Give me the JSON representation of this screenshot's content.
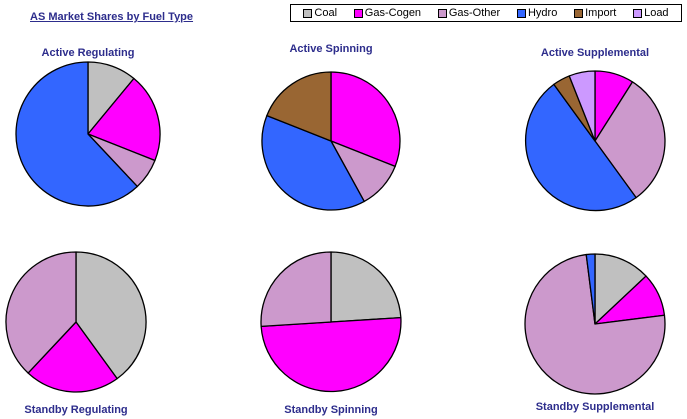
{
  "page": {
    "title": "AS Market Shares by Fuel Type"
  },
  "colors": {
    "Coal": "#c0c0c0",
    "Gas-Cogen": "#ff00ff",
    "Gas-Other": "#cc99cc",
    "Hydro": "#3366ff",
    "Import": "#996633",
    "Load": "#cc99ff"
  },
  "legend": [
    {
      "label": "Coal",
      "color": "#c0c0c0"
    },
    {
      "label": "Gas-Cogen",
      "color": "#ff00ff"
    },
    {
      "label": "Gas-Other",
      "color": "#cc99cc"
    },
    {
      "label": "Hydro",
      "color": "#3366ff"
    },
    {
      "label": "Import",
      "color": "#996633"
    },
    {
      "label": "Load",
      "color": "#cc99ff"
    }
  ],
  "chart_data": [
    {
      "type": "pie",
      "title": "Active Regulating",
      "slices": [
        {
          "label": "Coal",
          "value": 11
        },
        {
          "label": "Gas-Cogen",
          "value": 20
        },
        {
          "label": "Gas-Other",
          "value": 7
        },
        {
          "label": "Hydro",
          "value": 62
        }
      ]
    },
    {
      "type": "pie",
      "title": "Active Spinning",
      "slices": [
        {
          "label": "Gas-Cogen",
          "value": 31
        },
        {
          "label": "Gas-Other",
          "value": 11
        },
        {
          "label": "Hydro",
          "value": 39
        },
        {
          "label": "Import",
          "value": 19
        }
      ]
    },
    {
      "type": "pie",
      "title": "Active Supplemental",
      "slices": [
        {
          "label": "Gas-Cogen",
          "value": 9
        },
        {
          "label": "Gas-Other",
          "value": 31
        },
        {
          "label": "Hydro",
          "value": 50
        },
        {
          "label": "Import",
          "value": 4
        },
        {
          "label": "Load",
          "value": 6
        }
      ]
    },
    {
      "type": "pie",
      "title": "Standby Regulating",
      "slices": [
        {
          "label": "Coal",
          "value": 40
        },
        {
          "label": "Gas-Cogen",
          "value": 22
        },
        {
          "label": "Gas-Other",
          "value": 38
        }
      ]
    },
    {
      "type": "pie",
      "title": "Standby Spinning",
      "slices": [
        {
          "label": "Coal",
          "value": 24
        },
        {
          "label": "Gas-Cogen",
          "value": 50
        },
        {
          "label": "Gas-Other",
          "value": 26
        }
      ]
    },
    {
      "type": "pie",
      "title": "Standby Supplemental",
      "slices": [
        {
          "label": "Coal",
          "value": 13
        },
        {
          "label": "Gas-Cogen",
          "value": 10
        },
        {
          "label": "Gas-Other",
          "value": 75
        },
        {
          "label": "Hydro",
          "value": 2
        }
      ]
    }
  ]
}
